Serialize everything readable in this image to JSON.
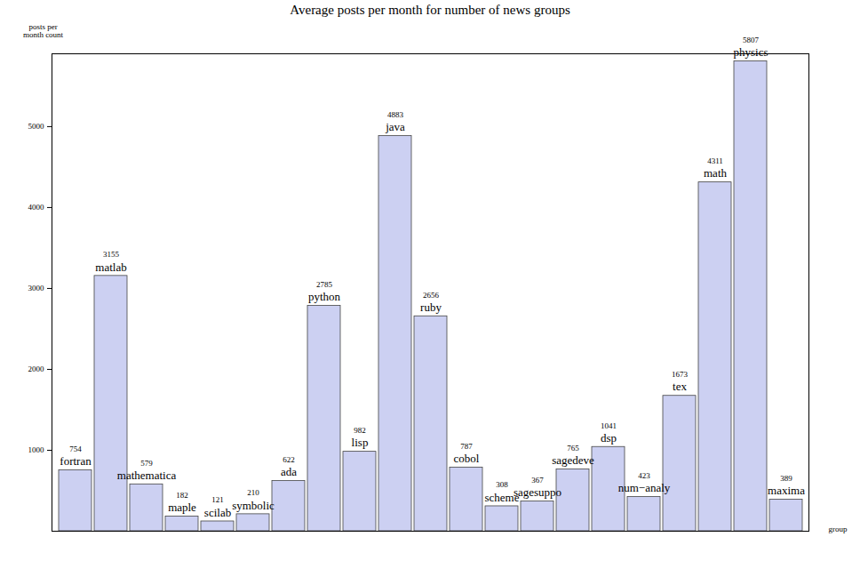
{
  "chart_data": {
    "type": "bar",
    "title": "Average posts per month for number of news groups",
    "y_label": "posts per month count",
    "x_label": "group",
    "categories": [
      "fortran",
      "matlab",
      "mathematica",
      "maple",
      "scilab",
      "symbolic",
      "ada",
      "python",
      "lisp",
      "java",
      "ruby",
      "cobol",
      "scheme",
      "sagesuppo",
      "sagedeve",
      "dsp",
      "num−analy",
      "tex",
      "math",
      "physics",
      "maxima"
    ],
    "values": [
      754,
      3155,
      579,
      182,
      121,
      210,
      622,
      2785,
      982,
      4883,
      2656,
      787,
      308,
      367,
      765,
      1041,
      423,
      1673,
      4311,
      5807,
      389
    ],
    "color": "#ccd0f2",
    "ylim": [
      0,
      5900
    ],
    "yticks": [
      1000,
      2000,
      3000,
      4000,
      5000
    ],
    "data_labels": true
  }
}
